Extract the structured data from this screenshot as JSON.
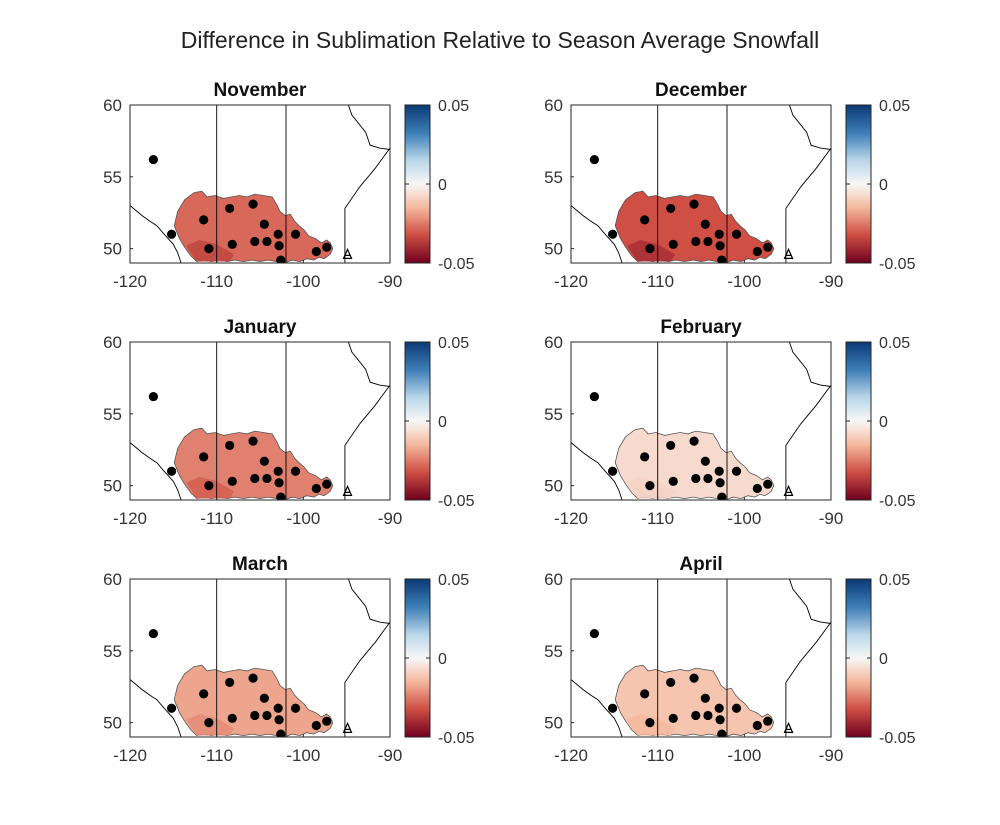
{
  "figure": {
    "title": "Difference in Sublimation Relative to Season Average Snowfall"
  },
  "colorbar": {
    "ticks": [
      "0.05",
      "0",
      "-0.05"
    ],
    "range": [
      -0.05,
      0.05
    ],
    "colors": {
      "max": "#0b3a75",
      "mid": "#f7f7f7",
      "min": "#70001f"
    }
  },
  "axes": {
    "xticks": [
      "-120",
      "-110",
      "-100",
      "-90"
    ],
    "yticks": [
      "60",
      "55",
      "50"
    ],
    "xlim": [
      -120,
      -90
    ],
    "ylim": [
      49,
      60
    ]
  },
  "stations": [
    [
      -117.3,
      56.2
    ],
    [
      -115.2,
      51.0
    ],
    [
      -111.5,
      52.0
    ],
    [
      -110.9,
      50.0
    ],
    [
      -108.5,
      52.8
    ],
    [
      -108.2,
      50.3
    ],
    [
      -105.8,
      53.1
    ],
    [
      -105.6,
      50.5
    ],
    [
      -104.5,
      51.7
    ],
    [
      -104.2,
      50.5
    ],
    [
      -102.9,
      51.0
    ],
    [
      -102.8,
      50.2
    ],
    [
      -102.6,
      49.2
    ],
    [
      -100.9,
      51.0
    ],
    [
      -98.5,
      49.8
    ],
    [
      -97.3,
      50.1
    ]
  ],
  "chart_data": [
    {
      "type": "heatmap",
      "title": "November",
      "xlim": [
        -120,
        -90
      ],
      "ylim": [
        49,
        60
      ],
      "clim": [
        -0.05,
        0.05
      ],
      "fill_value": -0.028
    },
    {
      "type": "heatmap",
      "title": "December",
      "xlim": [
        -120,
        -90
      ],
      "ylim": [
        49,
        60
      ],
      "clim": [
        -0.05,
        0.05
      ],
      "fill_value": -0.032
    },
    {
      "type": "heatmap",
      "title": "January",
      "xlim": [
        -120,
        -90
      ],
      "ylim": [
        49,
        60
      ],
      "clim": [
        -0.05,
        0.05
      ],
      "fill_value": -0.024
    },
    {
      "type": "heatmap",
      "title": "February",
      "xlim": [
        -120,
        -90
      ],
      "ylim": [
        49,
        60
      ],
      "clim": [
        -0.05,
        0.05
      ],
      "fill_value": -0.007
    },
    {
      "type": "heatmap",
      "title": "March",
      "xlim": [
        -120,
        -90
      ],
      "ylim": [
        49,
        60
      ],
      "clim": [
        -0.05,
        0.05
      ],
      "fill_value": -0.018
    },
    {
      "type": "heatmap",
      "title": "April",
      "xlim": [
        -120,
        -90
      ],
      "ylim": [
        49,
        60
      ],
      "clim": [
        -0.05,
        0.05
      ],
      "fill_value": -0.012
    }
  ]
}
